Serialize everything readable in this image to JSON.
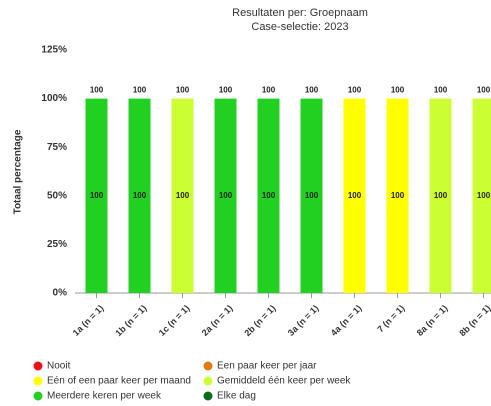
{
  "chart_data": {
    "type": "stacked_bar",
    "subtitle": [
      "Resultaten per: Groepnaam",
      "Case-selectie: 2023"
    ],
    "y_label": "Totaal percentage",
    "categories": [
      "1a (n = 1)",
      "1b (n = 1)",
      "1c (n = 1)",
      "2a (n = 1)",
      "2b (n = 1)",
      "3a (n = 1)",
      "4a (n = 1)",
      "7 (n = 1)",
      "8a (n = 1)",
      "8b (n = 1)"
    ],
    "series": [
      {
        "name": "Nooit",
        "color": "#e8141a",
        "values": [
          0,
          0,
          0,
          0,
          0,
          0,
          0,
          0,
          0,
          0
        ]
      },
      {
        "name": "Een paar keer per jaar",
        "color": "#e07b10",
        "values": [
          0,
          0,
          0,
          0,
          0,
          0,
          0,
          0,
          0,
          0
        ]
      },
      {
        "name": "Eén of een paar keer per maand",
        "color": "#ffff00",
        "values": [
          0,
          0,
          0,
          0,
          0,
          0,
          100,
          100,
          0,
          0
        ]
      },
      {
        "name": "Gemiddeld één keer per week",
        "color": "#ccff33",
        "values": [
          0,
          0,
          100,
          0,
          0,
          0,
          0,
          0,
          100,
          100
        ]
      },
      {
        "name": "Meerdere keren per week",
        "color": "#22d022",
        "values": [
          100,
          100,
          0,
          100,
          100,
          100,
          0,
          0,
          0,
          0
        ]
      },
      {
        "name": "Elke dag",
        "color": "#0b6b1a",
        "values": [
          0,
          0,
          0,
          0,
          0,
          0,
          0,
          0,
          0,
          0
        ]
      }
    ],
    "totals": [
      100,
      100,
      100,
      100,
      100,
      100,
      100,
      100,
      100,
      100
    ],
    "ylim": [
      0,
      125
    ],
    "yticks": [
      {
        "value": 0,
        "label": "0%"
      },
      {
        "value": 25,
        "label": "25%"
      },
      {
        "value": 50,
        "label": "50%"
      },
      {
        "value": 75,
        "label": "75%"
      },
      {
        "value": 100,
        "label": "100%"
      },
      {
        "value": 125,
        "label": "125%"
      }
    ],
    "grid": false,
    "legend": "bottom"
  }
}
